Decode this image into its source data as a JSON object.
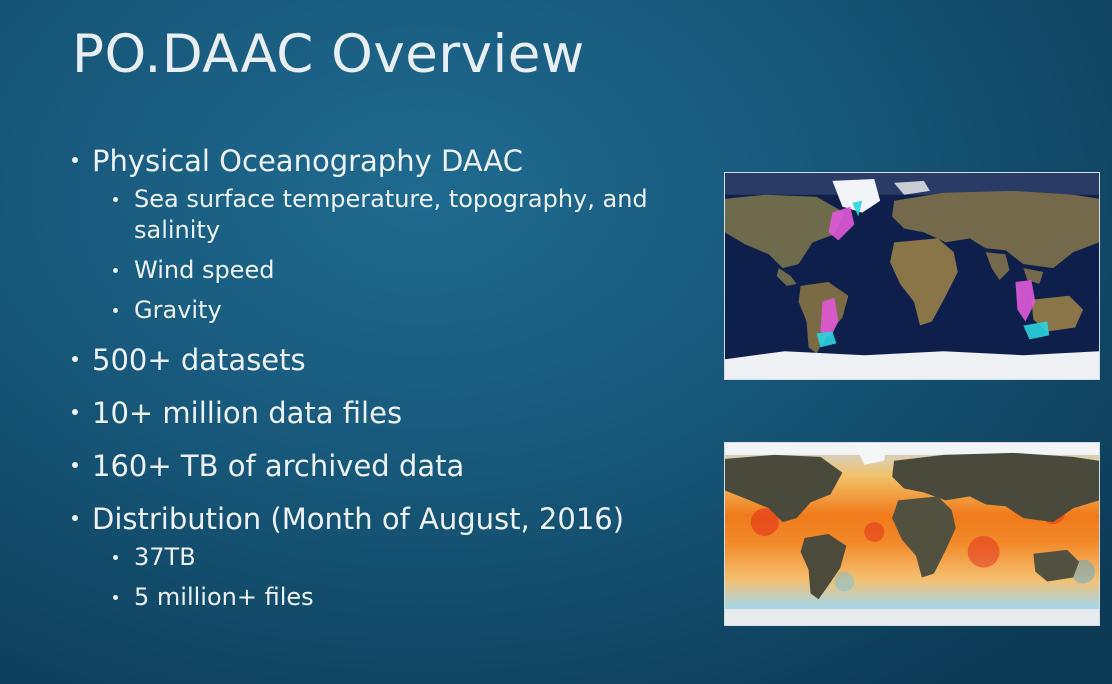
{
  "slide": {
    "title": "PO.DAAC Overview",
    "bullets": [
      {
        "text": "Physical Oceanography DAAC",
        "sub": [
          "Sea surface temperature, topography, and salinity",
          "Wind speed",
          "Gravity"
        ]
      },
      {
        "text": "500+ datasets"
      },
      {
        "text": "10+ million data files"
      },
      {
        "text": "160+ TB of archived data"
      },
      {
        "text": "Distribution (Month of August, 2016)",
        "sub": [
          "37TB",
          "5 million+ files"
        ]
      }
    ]
  },
  "images": {
    "top": {
      "icon": "satellite-coverage-world-map"
    },
    "bottom": {
      "icon": "sea-surface-temperature-world-map"
    }
  },
  "colors": {
    "background": "#185a7d",
    "text": "#eef2f5",
    "ocean_dark": "#0d1e4a",
    "land": "#7a6a48",
    "swath_magenta": "#e05ad8",
    "swath_cyan": "#2ad4e0",
    "sst_warm": "#f07a1a",
    "sst_hot": "#e02a1a"
  }
}
